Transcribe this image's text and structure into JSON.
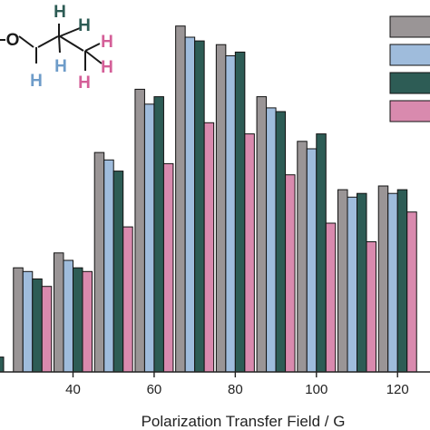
{
  "chart_data": {
    "type": "bar",
    "xlabel": "Polarization Transfer Field / G",
    "x_ticks": [
      40,
      60,
      80,
      100,
      120
    ],
    "categories": [
      30,
      40,
      50,
      60,
      70,
      80,
      90,
      100,
      110,
      120
    ],
    "xlim": [
      22,
      128
    ],
    "ylim": [
      0,
      1
    ],
    "series": [
      {
        "color": "#9a9596",
        "values": [
          0.28,
          0.32,
          0.59,
          0.76,
          0.93,
          0.88,
          0.74,
          0.62,
          0.49,
          0.5
        ]
      },
      {
        "color": "#9fbcdc",
        "values": [
          0.27,
          0.3,
          0.57,
          0.72,
          0.9,
          0.85,
          0.71,
          0.6,
          0.47,
          0.48
        ]
      },
      {
        "color": "#2d5c55",
        "values": [
          0.25,
          0.28,
          0.54,
          0.74,
          0.89,
          0.86,
          0.7,
          0.64,
          0.48,
          0.49
        ]
      },
      {
        "color": "#d98aae",
        "values": [
          0.23,
          0.27,
          0.39,
          0.56,
          0.67,
          0.64,
          0.53,
          0.4,
          0.35,
          0.43
        ]
      }
    ],
    "grid": false,
    "legend_placement": "top-right"
  },
  "molecule": {
    "atoms": [
      {
        "label": "H",
        "color": "#2d5c55"
      },
      {
        "label": "H",
        "color": "#2d5c55"
      },
      {
        "label": "O",
        "color": "#1a1a1a"
      },
      {
        "label": "H",
        "color": "#6e9cc9"
      },
      {
        "label": "H",
        "color": "#6e9cc9"
      },
      {
        "label": "H",
        "color": "#d45f98"
      },
      {
        "label": "H",
        "color": "#d45f98"
      },
      {
        "label": "H",
        "color": "#d45f98"
      }
    ]
  }
}
